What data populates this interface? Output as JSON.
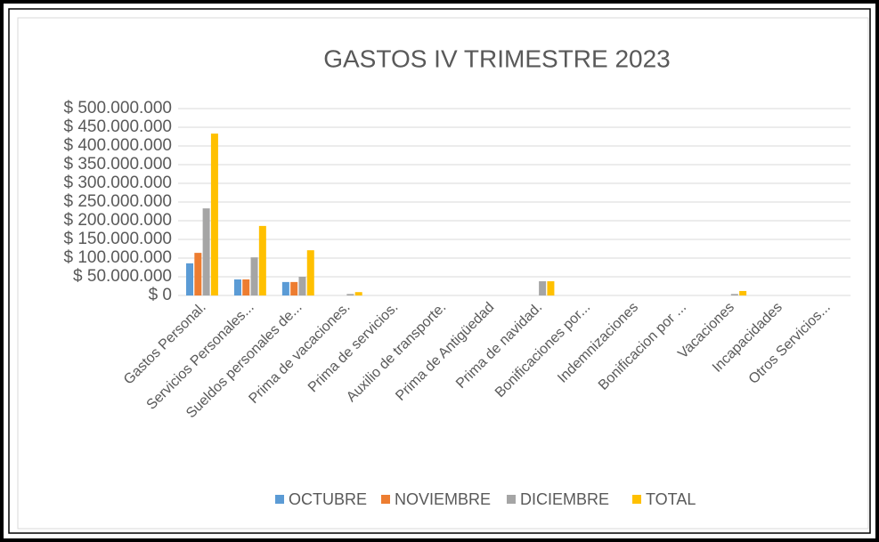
{
  "chart_data": {
    "type": "bar",
    "title": "GASTOS IV TRIMESTRE 2023",
    "categories": [
      "Gastos Personal.",
      "Servicios Personales...",
      "Sueldos personales de...",
      "Prima de vacaciones.",
      "Prima de servicios.",
      "Auxilio de transporte.",
      "Prima de Antigüedad",
      "Prima de navidad.",
      "Bonificaciones por...",
      "Indemnizaciones",
      "Bonificacion por ...",
      "Vacaciones",
      "Incapacidades",
      "Otros Servicios..."
    ],
    "series": [
      {
        "name": "OCTUBRE",
        "color": "#5b9bd5",
        "values": [
          86000000,
          43000000,
          36000000,
          0,
          0,
          0,
          0,
          0,
          0,
          0,
          0,
          0,
          0,
          0
        ]
      },
      {
        "name": "NOVIEMBRE",
        "color": "#ed7d31",
        "values": [
          114000000,
          43000000,
          36000000,
          0,
          0,
          0,
          0,
          0,
          0,
          0,
          0,
          0,
          0,
          0
        ]
      },
      {
        "name": "DICIEMBRE",
        "color": "#a5a5a5",
        "values": [
          233000000,
          102000000,
          50000000,
          4000000,
          0,
          0,
          0,
          38000000,
          0,
          0,
          0,
          4000000,
          0,
          0
        ]
      },
      {
        "name": "TOTAL",
        "color": "#ffc000",
        "values": [
          433000000,
          186000000,
          121000000,
          9000000,
          0,
          0,
          0,
          38000000,
          0,
          0,
          0,
          12000000,
          0,
          0
        ]
      }
    ],
    "ylim": [
      0,
      500000000
    ],
    "yticks": [
      {
        "value": 0,
        "label": "$ 0"
      },
      {
        "value": 50000000,
        "label": "$ 50.000.000"
      },
      {
        "value": 100000000,
        "label": "$ 100.000.000"
      },
      {
        "value": 150000000,
        "label": "$ 150.000.000"
      },
      {
        "value": 200000000,
        "label": "$ 200.000.000"
      },
      {
        "value": 250000000,
        "label": "$ 250.000.000"
      },
      {
        "value": 300000000,
        "label": "$ 300.000.000"
      },
      {
        "value": 350000000,
        "label": "$ 350.000.000"
      },
      {
        "value": 400000000,
        "label": "$ 400.000.000"
      },
      {
        "value": 450000000,
        "label": "$ 450.000.000"
      },
      {
        "value": 500000000,
        "label": "$ 500.000.000"
      }
    ],
    "grid": true
  }
}
